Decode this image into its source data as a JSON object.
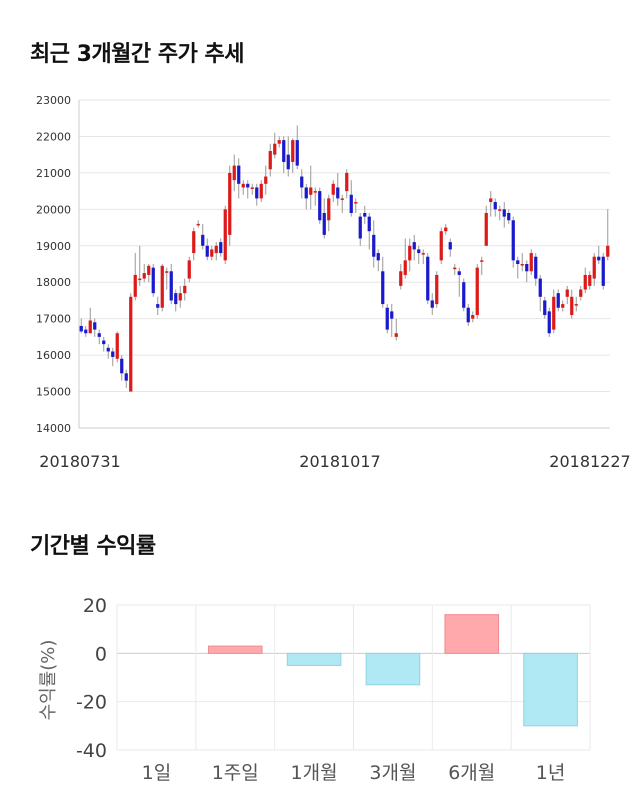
{
  "section1": {
    "title": "최근 3개월간 주가 추세"
  },
  "section2": {
    "title": "기간별 수익률"
  },
  "chart_data": [
    {
      "type": "candlestick",
      "title": "최근 3개월간 주가 추세",
      "ylim": [
        14000,
        23000
      ],
      "y_ticks": [
        "23000",
        "22000",
        "21000",
        "20000",
        "19000",
        "18000",
        "17000",
        "16000",
        "15000",
        "14000"
      ],
      "x_tick_labels": [
        "20180731",
        "20181017",
        "20181227"
      ],
      "grid": true,
      "colors": {
        "up": "#dd1a1a",
        "down": "#1a1acc",
        "wick": "#999999"
      },
      "candles": [
        [
          16800,
          16650,
          17000,
          16600
        ],
        [
          16700,
          16600,
          16800,
          16500
        ],
        [
          16600,
          16950,
          17300,
          16600
        ],
        [
          16900,
          16700,
          17000,
          16500
        ],
        [
          16600,
          16500,
          16700,
          16300
        ],
        [
          16400,
          16300,
          16500,
          16100
        ],
        [
          16200,
          16100,
          16300,
          15900
        ],
        [
          16100,
          15950,
          16200,
          15700
        ],
        [
          15900,
          16600,
          16650,
          15800
        ],
        [
          15900,
          15500,
          16000,
          15300
        ],
        [
          15500,
          15300,
          15600,
          15100
        ],
        [
          15000,
          17600,
          17700,
          15000
        ],
        [
          17600,
          18200,
          18800,
          17500
        ],
        [
          18100,
          18100,
          19000,
          17900
        ],
        [
          18100,
          18250,
          18500,
          18000
        ],
        [
          18200,
          18450,
          18500,
          18000
        ],
        [
          18400,
          17700,
          18500,
          17600
        ],
        [
          17400,
          17300,
          17600,
          17100
        ],
        [
          17300,
          18450,
          18500,
          17200
        ],
        [
          18300,
          18300,
          18400,
          17800
        ],
        [
          18300,
          17500,
          18500,
          17400
        ],
        [
          17700,
          17400,
          17800,
          17200
        ],
        [
          17500,
          17700,
          17900,
          17300
        ],
        [
          17700,
          17900,
          18100,
          17500
        ],
        [
          18100,
          18600,
          18700,
          18000
        ],
        [
          18800,
          19400,
          19500,
          18600
        ],
        [
          19600,
          19600,
          19700,
          19500
        ],
        [
          19300,
          19000,
          19600,
          18900
        ],
        [
          19000,
          18700,
          19200,
          18600
        ],
        [
          18700,
          18900,
          19000,
          18600
        ],
        [
          18800,
          19000,
          19100,
          18600
        ],
        [
          19100,
          18800,
          19200,
          18700
        ],
        [
          18600,
          20000,
          20100,
          18500
        ],
        [
          19300,
          21000,
          21200,
          19000
        ],
        [
          20800,
          21200,
          21500,
          20500
        ],
        [
          21200,
          20700,
          21400,
          20300
        ],
        [
          20600,
          20700,
          20800,
          20400
        ],
        [
          20700,
          20600,
          20800,
          20300
        ],
        [
          20600,
          20600,
          20700,
          20400
        ],
        [
          20600,
          20300,
          20700,
          20100
        ],
        [
          20300,
          20700,
          20800,
          20200
        ],
        [
          20700,
          20900,
          21200,
          20400
        ],
        [
          21100,
          21600,
          21800,
          20900
        ],
        [
          21500,
          21800,
          22100,
          21400
        ],
        [
          21800,
          21900,
          22000,
          21700
        ],
        [
          21900,
          21300,
          22000,
          21000
        ],
        [
          21500,
          21100,
          22000,
          20900
        ],
        [
          21300,
          21900,
          21950,
          21000
        ],
        [
          21900,
          21200,
          22300,
          21100
        ],
        [
          20900,
          20600,
          21100,
          20300
        ],
        [
          20600,
          20300,
          20700,
          20000
        ],
        [
          20400,
          20600,
          21200,
          20000
        ],
        [
          20500,
          20500,
          20600,
          20100
        ],
        [
          20500,
          19700,
          20600,
          19600
        ],
        [
          19900,
          19300,
          20300,
          19200
        ],
        [
          19700,
          20300,
          20400,
          19400
        ],
        [
          20400,
          20700,
          20800,
          20200
        ],
        [
          20600,
          20300,
          21000,
          20100
        ],
        [
          20300,
          20300,
          20400,
          19900
        ],
        [
          20500,
          21000,
          21100,
          20300
        ],
        [
          20400,
          19900,
          20800,
          19800
        ],
        [
          20200,
          20200,
          20300,
          19900
        ],
        [
          19800,
          19200,
          19900,
          19000
        ],
        [
          19900,
          19800,
          20100,
          19600
        ],
        [
          19800,
          19400,
          19900,
          18900
        ],
        [
          19300,
          18700,
          19700,
          18400
        ],
        [
          18800,
          18600,
          18900,
          18300
        ],
        [
          18300,
          17400,
          18700,
          17300
        ],
        [
          17300,
          16700,
          17400,
          16600
        ],
        [
          17200,
          17000,
          17400,
          16500
        ],
        [
          16500,
          16600,
          17000,
          16400
        ],
        [
          17900,
          18300,
          18500,
          17800
        ],
        [
          18200,
          18600,
          19200,
          18100
        ],
        [
          18600,
          19000,
          19200,
          18300
        ],
        [
          19100,
          18900,
          19300,
          18600
        ],
        [
          18900,
          18800,
          19000,
          18500
        ],
        [
          18800,
          18800,
          18900,
          18500
        ],
        [
          18700,
          17500,
          18800,
          17400
        ],
        [
          17500,
          17300,
          17700,
          17100
        ],
        [
          17400,
          18200,
          18300,
          17300
        ],
        [
          18600,
          19400,
          19500,
          18500
        ],
        [
          19400,
          19500,
          19600,
          19300
        ],
        [
          19100,
          18900,
          19200,
          18700
        ],
        [
          18400,
          18400,
          18500,
          18200
        ],
        [
          18300,
          18200,
          18400,
          17600
        ],
        [
          18000,
          17300,
          18100,
          17200
        ],
        [
          17300,
          16900,
          17400,
          16800
        ],
        [
          17000,
          17100,
          17200,
          16900
        ],
        [
          17100,
          18400,
          18500,
          17000
        ],
        [
          18600,
          18600,
          18700,
          18200
        ],
        [
          19000,
          19900,
          20100,
          19000
        ],
        [
          20200,
          20300,
          20500,
          19800
        ],
        [
          20200,
          20000,
          20300,
          19800
        ],
        [
          20000,
          20000,
          20100,
          19700
        ],
        [
          20000,
          19800,
          20200,
          19500
        ],
        [
          19900,
          19700,
          20000,
          19600
        ],
        [
          19700,
          18600,
          19800,
          18400
        ],
        [
          18600,
          18500,
          18700,
          18100
        ],
        [
          18500,
          18500,
          18800,
          18300
        ],
        [
          18500,
          18300,
          18600,
          18000
        ],
        [
          18300,
          18800,
          18900,
          18200
        ],
        [
          18700,
          18100,
          18800,
          17900
        ],
        [
          18100,
          17600,
          18200,
          17200
        ],
        [
          17500,
          17100,
          17600,
          17000
        ],
        [
          17200,
          16600,
          17300,
          16500
        ],
        [
          16700,
          17600,
          17800,
          16600
        ],
        [
          17700,
          17300,
          17800,
          17200
        ],
        [
          17300,
          17400,
          17500,
          17200
        ],
        [
          17600,
          17800,
          17900,
          17400
        ],
        [
          17100,
          17600,
          17800,
          17000
        ],
        [
          17400,
          17400,
          17600,
          17200
        ],
        [
          17600,
          17800,
          17900,
          17500
        ],
        [
          17800,
          18200,
          18400,
          17700
        ],
        [
          17900,
          18200,
          18300,
          17800
        ],
        [
          18100,
          18700,
          18800,
          17900
        ],
        [
          18700,
          18600,
          19000,
          18500
        ],
        [
          18700,
          17900,
          18800,
          17800
        ],
        [
          18700,
          19000,
          20000,
          18600
        ]
      ]
    },
    {
      "type": "bar",
      "title": "기간별 수익률",
      "ylabel": "수익률(%)",
      "categories": [
        "1일",
        "1주일",
        "1개월",
        "3개월",
        "6개월",
        "1년"
      ],
      "values": [
        0,
        3,
        -5,
        -13,
        16,
        -30
      ],
      "ylim": [
        -40,
        20
      ],
      "y_ticks": [
        "20",
        "0",
        "-20",
        "-40"
      ],
      "grid": true,
      "colors": {
        "positive": "#ffa9ad",
        "negative": "#b0e9f3"
      }
    }
  ]
}
